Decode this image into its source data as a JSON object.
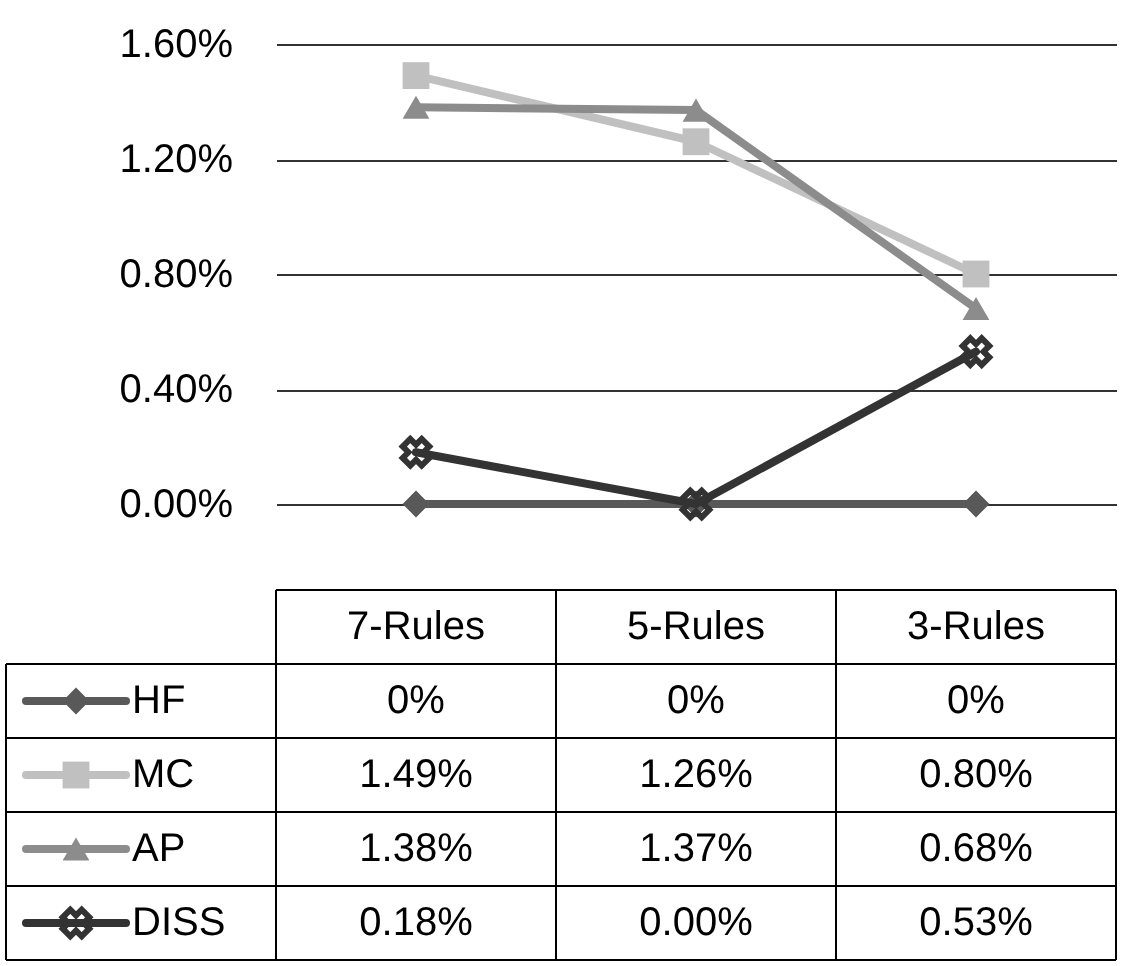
{
  "chart_data": {
    "type": "line",
    "categories": [
      "7-Rules",
      "5-Rules",
      "3-Rules"
    ],
    "series": [
      {
        "name": "HF",
        "color": "#595959",
        "marker": "diamond",
        "values": [
          0,
          0,
          0
        ],
        "value_labels": [
          "0%",
          "0%",
          "0%"
        ]
      },
      {
        "name": "MC",
        "color": "#c0c0c0",
        "marker": "square",
        "values": [
          1.49,
          1.26,
          0.8
        ],
        "value_labels": [
          "1.49%",
          "1.26%",
          "0.80%"
        ]
      },
      {
        "name": "AP",
        "color": "#8c8c8c",
        "marker": "triangle",
        "values": [
          1.38,
          1.37,
          0.68
        ],
        "value_labels": [
          "1.38%",
          "1.37%",
          "0.68%"
        ]
      },
      {
        "name": "DISS",
        "color": "#333333",
        "marker": "cross",
        "values": [
          0.18,
          0.0,
          0.53
        ],
        "value_labels": [
          "0.18%",
          "0.00%",
          "0.53%"
        ]
      }
    ],
    "ylim": [
      0,
      1.6
    ],
    "yticks": [
      {
        "value": 0,
        "label": "0.00%"
      },
      {
        "value": 0.4,
        "label": "0.40%"
      },
      {
        "value": 0.8,
        "label": "0.80%"
      },
      {
        "value": 1.2,
        "label": "1.20%"
      },
      {
        "value": 1.6,
        "label": "1.60%"
      }
    ],
    "grid": "y",
    "legend": "bottom",
    "tick_labels": "y",
    "data_labels": true
  }
}
